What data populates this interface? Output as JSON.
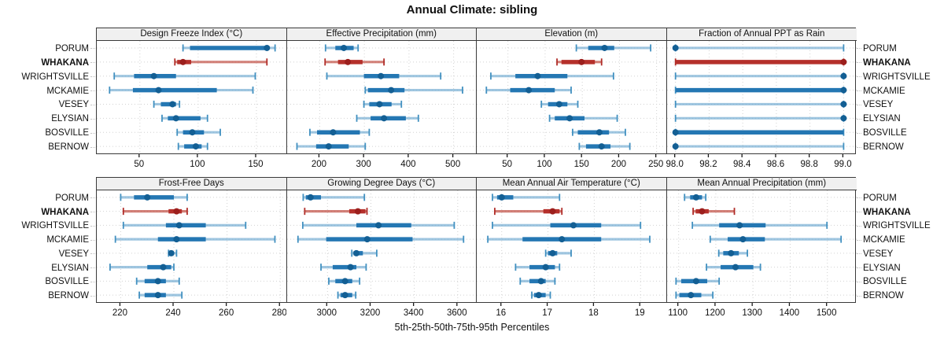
{
  "title": "Annual Climate: sibling",
  "footer": "5th-25th-50th-75th-95th Percentiles",
  "locations": [
    "PORUM",
    "WHAKANA",
    "WRIGHTSVILLE",
    "MCKAMIE",
    "VESEY",
    "ELYSIAN",
    "BOSVILLE",
    "BERNOW"
  ],
  "highlight": "WHAKANA",
  "colors": {
    "blue_whisker": "#7fb3d6",
    "blue_cap": "#4190c0",
    "blue_bar": "#2477b3",
    "blue_dot": "#135f94",
    "red_whisker": "#c4564c",
    "red_cap": "#b02c28",
    "red_bar": "#b5302b",
    "red_dot": "#9c1f1d",
    "grid": "#d2d2d2",
    "border": "#3a3a3a",
    "header_bg": "#f0f0f0",
    "text": "#111111"
  },
  "chart_data": {
    "type": "dotplot-percentile-trellis",
    "note": "values per location are [p5,p25,p50,p75,p95]; locations listed top-to-bottom",
    "legend_position": "none",
    "grid": "dotted",
    "panels": [
      {
        "label": "Design Freeze Index (°C)",
        "row": 0,
        "col": 0,
        "xlim": [
          13,
          175
        ],
        "tick_values": [
          50,
          100,
          150
        ],
        "tick_labels": [
          "50",
          "100",
          "150"
        ],
        "values": [
          [
            87,
            93,
            159,
            161,
            166
          ],
          [
            80,
            82,
            87,
            94,
            159
          ],
          [
            28,
            45,
            62,
            81,
            149
          ],
          [
            24,
            44,
            66,
            116,
            147
          ],
          [
            62,
            68,
            78,
            81,
            84
          ],
          [
            69,
            74,
            81,
            102,
            108
          ],
          [
            82,
            87,
            95,
            105,
            119
          ],
          [
            83,
            88,
            98,
            103,
            108
          ]
        ]
      },
      {
        "label": "Effective Precipitation (mm)",
        "row": 0,
        "col": 1,
        "xlim": [
          127,
          550
        ],
        "tick_values": [
          200,
          300,
          400,
          500
        ],
        "tick_labels": [
          "200",
          "300",
          "400",
          "500"
        ],
        "values": [
          [
            213,
            235,
            254,
            276,
            286
          ],
          [
            212,
            241,
            263,
            296,
            344
          ],
          [
            216,
            299,
            337,
            378,
            471
          ],
          [
            302,
            308,
            360,
            390,
            520
          ],
          [
            299,
            311,
            334,
            361,
            383
          ],
          [
            283,
            314,
            344,
            393,
            421
          ],
          [
            178,
            194,
            230,
            290,
            311
          ],
          [
            149,
            192,
            220,
            265,
            302
          ]
        ]
      },
      {
        "label": "Elevation (m)",
        "row": 0,
        "col": 2,
        "xlim": [
          8,
          262
        ],
        "tick_values": [
          50,
          100,
          150,
          200,
          250
        ],
        "tick_labels": [
          "50",
          "100",
          "150",
          "200",
          "250"
        ],
        "values": [
          [
            142,
            158,
            180,
            193,
            242
          ],
          [
            116,
            122,
            149,
            167,
            176
          ],
          [
            27,
            60,
            90,
            130,
            192
          ],
          [
            21,
            53,
            78,
            113,
            135
          ],
          [
            95,
            104,
            119,
            130,
            144
          ],
          [
            106,
            113,
            133,
            153,
            197
          ],
          [
            137,
            144,
            173,
            186,
            208
          ],
          [
            146,
            155,
            176,
            188,
            214
          ]
        ]
      },
      {
        "label": "Fraction of Annual PPT as Rain",
        "row": 0,
        "col": 3,
        "xlim": [
          97.95,
          99.08
        ],
        "tick_values": [
          98.0,
          98.2,
          98.4,
          98.6,
          98.8,
          99.0
        ],
        "tick_labels": [
          "98.0",
          "98.2",
          "98.4",
          "98.6",
          "98.8",
          "99.0"
        ],
        "values": [
          [
            98,
            98,
            98,
            98,
            99
          ],
          [
            98,
            98,
            99,
            99,
            99
          ],
          [
            98,
            99,
            99,
            99,
            99
          ],
          [
            98,
            98,
            99,
            99,
            99
          ],
          [
            98,
            99,
            99,
            99,
            99
          ],
          [
            98,
            99,
            99,
            99,
            99
          ],
          [
            98,
            98,
            98,
            99,
            99
          ],
          [
            98,
            98,
            98,
            98,
            99
          ]
        ]
      },
      {
        "label": "Frost-Free Days",
        "row": 1,
        "col": 0,
        "xlim": [
          211,
          282
        ],
        "tick_values": [
          220,
          240,
          260,
          280
        ],
        "tick_labels": [
          "220",
          "240",
          "260",
          "280"
        ],
        "values": [
          [
            220,
            225,
            230,
            240,
            245
          ],
          [
            221,
            238,
            241,
            243,
            245
          ],
          [
            221,
            237,
            242,
            252,
            267
          ],
          [
            218,
            234,
            241,
            252,
            278
          ],
          [
            238,
            239,
            239,
            240,
            241
          ],
          [
            216,
            230,
            236,
            239,
            240
          ],
          [
            226,
            229,
            234,
            237,
            242
          ],
          [
            227,
            229,
            234,
            237,
            243
          ]
        ]
      },
      {
        "label": "Growing Degree Days (°C)",
        "row": 1,
        "col": 1,
        "xlim": [
          2814,
          3684
        ],
        "tick_values": [
          3000,
          3200,
          3400,
          3600
        ],
        "tick_labels": [
          "3000",
          "3200",
          "3400",
          "3600"
        ],
        "values": [
          [
            2888,
            2900,
            2922,
            2970,
            3170
          ],
          [
            2895,
            3100,
            3140,
            3175,
            3182
          ],
          [
            2886,
            3133,
            3235,
            3386,
            3584
          ],
          [
            2864,
            2994,
            3183,
            3392,
            3627
          ],
          [
            3112,
            3120,
            3133,
            3163,
            3227
          ],
          [
            2970,
            3024,
            3106,
            3133,
            3178
          ],
          [
            3006,
            3036,
            3081,
            3114,
            3148
          ],
          [
            3048,
            3060,
            3081,
            3114,
            3130
          ]
        ]
      },
      {
        "label": "Mean Annual Air Temperature (°C)",
        "row": 1,
        "col": 2,
        "xlim": [
          15.46,
          19.54
        ],
        "tick_values": [
          16,
          17,
          18,
          19
        ],
        "tick_labels": [
          "16",
          "17",
          "18",
          "19"
        ],
        "values": [
          [
            15.8,
            15.9,
            16.0,
            16.25,
            17.25
          ],
          [
            15.85,
            16.9,
            17.1,
            17.25,
            17.3
          ],
          [
            15.8,
            17.05,
            17.55,
            18.15,
            19.0
          ],
          [
            15.7,
            16.45,
            17.3,
            18.15,
            19.2
          ],
          [
            16.95,
            17.0,
            17.1,
            17.2,
            17.5
          ],
          [
            16.3,
            16.6,
            16.95,
            17.15,
            17.25
          ],
          [
            16.4,
            16.6,
            16.85,
            16.95,
            17.15
          ],
          [
            16.65,
            16.7,
            16.8,
            16.95,
            17.05
          ]
        ]
      },
      {
        "label": "Mean Annual Precipitation (mm)",
        "row": 1,
        "col": 3,
        "xlim": [
          1069,
          1580
        ],
        "tick_values": [
          1100,
          1200,
          1300,
          1400,
          1500
        ],
        "tick_labels": [
          "1100",
          "1200",
          "1300",
          "1400",
          "1500"
        ],
        "values": [
          [
            1116,
            1131,
            1147,
            1163,
            1173
          ],
          [
            1139,
            1146,
            1163,
            1181,
            1250
          ],
          [
            1137,
            1209,
            1264,
            1334,
            1499
          ],
          [
            1185,
            1232,
            1273,
            1332,
            1537
          ],
          [
            1208,
            1220,
            1241,
            1262,
            1285
          ],
          [
            1175,
            1213,
            1253,
            1301,
            1320
          ],
          [
            1093,
            1107,
            1147,
            1177,
            1209
          ],
          [
            1093,
            1102,
            1133,
            1161,
            1192
          ]
        ]
      }
    ]
  }
}
